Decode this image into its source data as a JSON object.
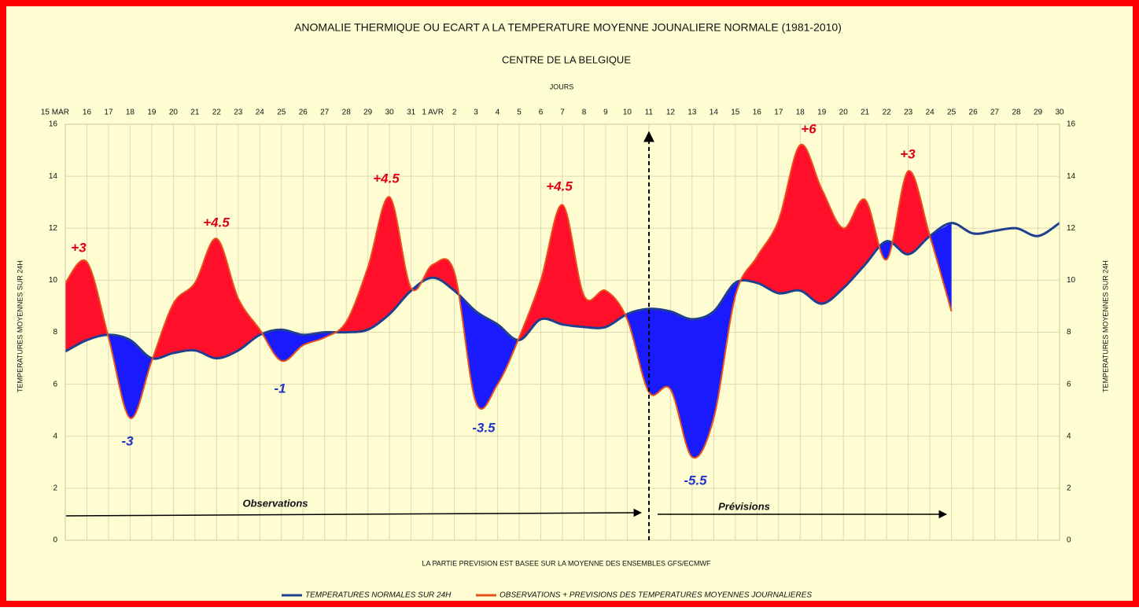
{
  "chart_data": {
    "type": "line",
    "title": "ANOMALIE THERMIQUE OU ECART A LA TEMPERATURE MOYENNE JOUNALIERE NORMALE (1981-2010)",
    "subtitle": "CENTRE DE LA BELGIQUE",
    "x_label": "JOURS",
    "y_label": "TEMPERATURES MOYENNES SUR 24H",
    "footnote": "LA PARTIE PREVISION EST BASEE SUR LA MOYENNE DES ENSEMBLES GFS/ECMWF",
    "observations_label": "Observations",
    "forecast_label": "Prévisions",
    "categories": [
      "15 MAR",
      "16",
      "17",
      "18",
      "19",
      "20",
      "21",
      "22",
      "23",
      "24",
      "25",
      "26",
      "27",
      "28",
      "29",
      "30",
      "31",
      "1 AVR",
      "2",
      "3",
      "4",
      "5",
      "6",
      "7",
      "8",
      "9",
      "10",
      "11",
      "12",
      "13",
      "14",
      "15",
      "16",
      "17",
      "18",
      "19",
      "20",
      "21",
      "22",
      "23",
      "24",
      "25",
      "26",
      "27",
      "28",
      "29",
      "30"
    ],
    "series": [
      {
        "name": "TEMPERATURES NORMALES SUR 24H",
        "color": "#1f3f8f",
        "values": [
          7.26,
          7.7,
          7.9,
          7.7,
          7.0,
          7.2,
          7.3,
          7.0,
          7.3,
          7.9,
          8.1,
          7.9,
          8.0,
          8.0,
          8.1,
          8.7,
          9.6,
          10.1,
          9.6,
          8.8,
          8.3,
          7.7,
          8.5,
          8.3,
          8.2,
          8.2,
          8.7,
          8.9,
          8.8,
          8.5,
          8.8,
          9.9,
          9.9,
          9.5,
          9.6,
          9.1,
          9.7,
          10.6,
          11.5,
          11.0,
          11.7,
          12.2,
          11.8,
          11.9,
          12.0,
          11.7,
          12.2
        ]
      },
      {
        "name": "OBSERVATIONS + PREVISIONS DES TEMPERATURES MOYENNES JOURNALIERES",
        "color": "#e8501c",
        "values": [
          9.9,
          10.7,
          7.8,
          4.7,
          6.9,
          9.1,
          9.9,
          11.6,
          9.3,
          8.1,
          6.9,
          7.5,
          7.8,
          8.4,
          10.5,
          13.2,
          9.7,
          10.6,
          10.3,
          5.3,
          6.0,
          7.8,
          10.0,
          12.9,
          9.4,
          9.6,
          8.5,
          5.7,
          5.8,
          3.2,
          4.7,
          9.4,
          10.9,
          12.3,
          15.2,
          13.5,
          12.0,
          13.1,
          10.8,
          14.2,
          11.7,
          8.8,
          null,
          null,
          null,
          null,
          null
        ]
      }
    ],
    "above_color": "#ff0f2a",
    "below_color": "#1a1aff",
    "ylim": [
      0,
      16
    ],
    "yticks": [
      0,
      2,
      4,
      6,
      8,
      10,
      12,
      14,
      16
    ],
    "grid": true,
    "annotations": [
      {
        "text": "+3",
        "color": "#e0001a"
      },
      {
        "text": "-3",
        "color": "#2233cc"
      },
      {
        "text": "+4.5",
        "color": "#e0001a"
      },
      {
        "text": "-1",
        "color": "#2233cc"
      },
      {
        "text": "+4.5",
        "color": "#e0001a"
      },
      {
        "text": "-3.5",
        "color": "#2233cc"
      },
      {
        "text": "+4.5",
        "color": "#e0001a"
      },
      {
        "text": "-5.5",
        "color": "#2233cc"
      },
      {
        "text": "+6",
        "color": "#e0001a"
      },
      {
        "text": "+3",
        "color": "#e0001a"
      }
    ]
  }
}
